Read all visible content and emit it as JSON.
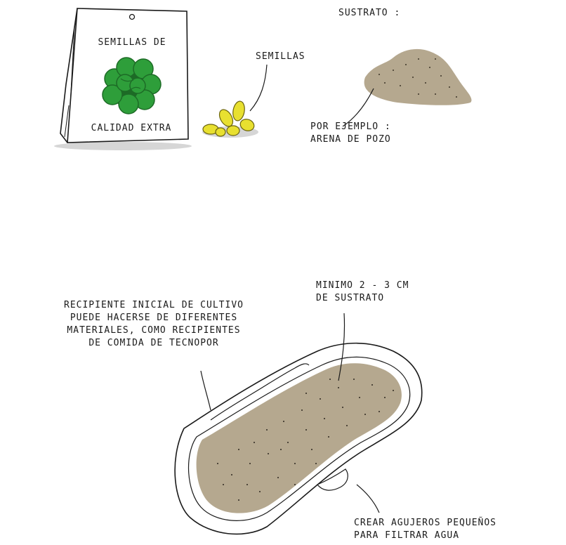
{
  "packet": {
    "title_top": "SEMILLAS DE",
    "title_bottom": "CALIDAD EXTRA",
    "leaf_color": "#2e9e3a",
    "leaf_dark": "#1d6b26"
  },
  "labels": {
    "seeds": "SEMILLAS",
    "substrate_title": "SUSTRATO :",
    "substrate_example_1": "POR EJEMPLO :",
    "substrate_example_2": "ARENA DE POZO",
    "container_1": "RECIPIENTE INICIAL DE CULTIVO",
    "container_2": "PUEDE HACERSE DE DIFERENTES",
    "container_3": "MATERIALES, COMO RECIPIENTES",
    "container_4": "DE COMIDA DE TECNOPOR",
    "depth_1": "MINIMO 2 - 3 CM",
    "depth_2": "DE SUSTRATO",
    "holes_1": "CREAR AGUJEROS PEQUEÑOS",
    "holes_2": "PARA FILTRAR AGUA"
  },
  "colors": {
    "sand": "#b5a88f",
    "seed": "#e8e030",
    "seed_outline": "#6b6410",
    "shadow": "#d6d6d6",
    "ink": "#1a1a1a"
  }
}
